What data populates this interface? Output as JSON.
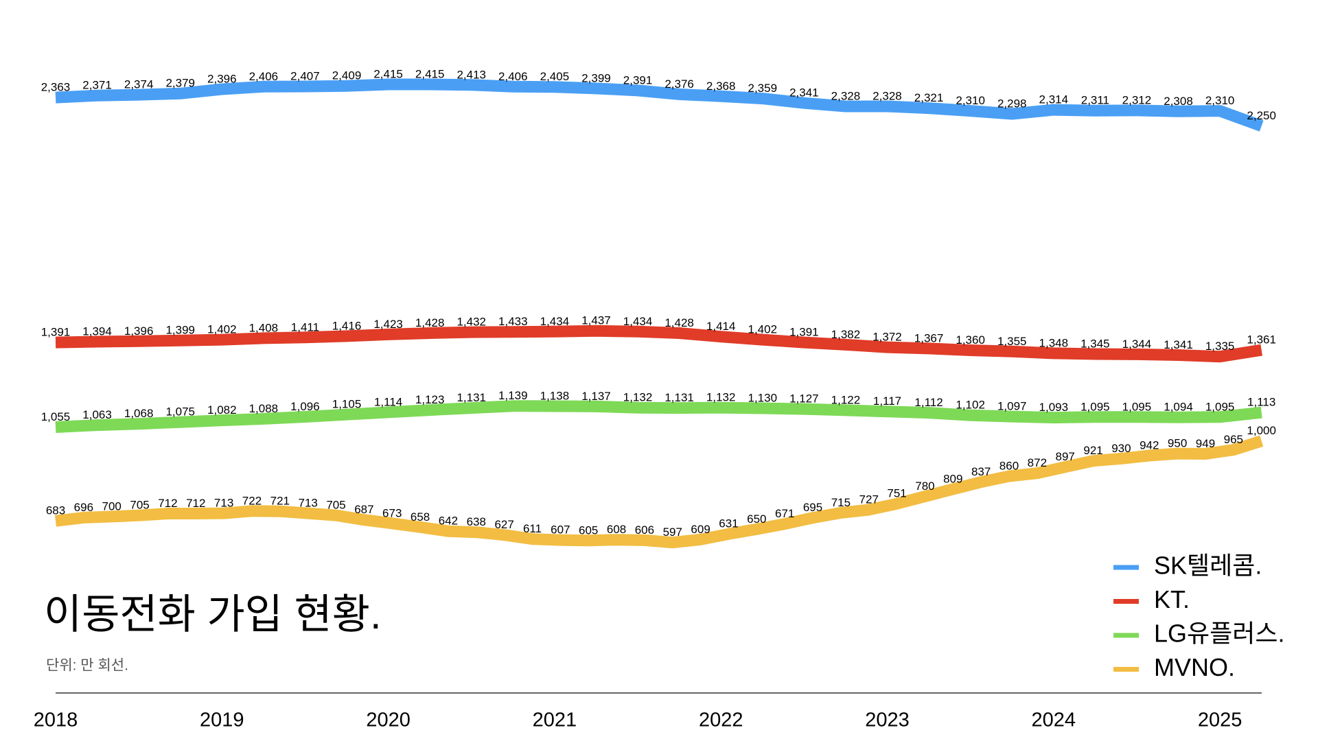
{
  "chart_data": {
    "type": "line",
    "title": "이동전화 가입 현황.",
    "subtitle": "단위: 만 회선.",
    "xlim": [
      2018,
      2025.25
    ],
    "xticks": [
      2018,
      2019,
      2020,
      2021,
      2022,
      2023,
      2024,
      2025
    ],
    "ylim": [
      0,
      2750
    ],
    "legend": "bottom-right",
    "series": [
      {
        "name": "SK텔레콤.",
        "color": "#4a9ff5",
        "values": [
          2363,
          2371,
          2374,
          2379,
          2396,
          2406,
          2407,
          2409,
          2415,
          2415,
          2413,
          2406,
          2405,
          2399,
          2391,
          2376,
          2368,
          2359,
          2341,
          2328,
          2328,
          2321,
          2310,
          2298,
          2314,
          2311,
          2312,
          2308,
          2310,
          2250
        ],
        "value_labels": [
          "2,363",
          "2,371",
          "2,374",
          "2,379",
          "2,396",
          "2,406",
          "2,407",
          "2,409",
          "2,415",
          "2,415",
          "2,413",
          "2,406",
          "2,405",
          "2,399",
          "2,391",
          "2,376",
          "2,368",
          "2,359",
          "2,341",
          "2,328",
          "2,328",
          "2,321",
          "2,310",
          "2,298",
          "2,314",
          "2,311",
          "2,312",
          "2,308",
          "2,310",
          "2,250"
        ]
      },
      {
        "name": "KT.",
        "color": "#e03c28",
        "values": [
          1391,
          1394,
          1396,
          1399,
          1402,
          1408,
          1411,
          1416,
          1423,
          1428,
          1432,
          1433,
          1434,
          1437,
          1434,
          1428,
          1414,
          1402,
          1391,
          1382,
          1372,
          1367,
          1360,
          1355,
          1348,
          1345,
          1344,
          1341,
          1335,
          1361
        ],
        "value_labels": [
          "1,391",
          "1,394",
          "1,396",
          "1,399",
          "1,402",
          "1,408",
          "1,411",
          "1,416",
          "1,423",
          "1,428",
          "1,432",
          "1,433",
          "1,434",
          "1,437",
          "1,434",
          "1,428",
          "1,414",
          "1,402",
          "1,391",
          "1,382",
          "1,372",
          "1,367",
          "1,360",
          "1,355",
          "1,348",
          "1,345",
          "1,344",
          "1,341",
          "1,335",
          "1,361"
        ]
      },
      {
        "name": "LG유플러스.",
        "color": "#7ed957",
        "values": [
          1055,
          1063,
          1068,
          1075,
          1082,
          1088,
          1096,
          1105,
          1114,
          1123,
          1131,
          1139,
          1138,
          1137,
          1132,
          1131,
          1132,
          1130,
          1127,
          1122,
          1117,
          1112,
          1102,
          1097,
          1093,
          1095,
          1095,
          1094,
          1095,
          1113
        ],
        "value_labels": [
          "1,055",
          "1,063",
          "1,068",
          "1,075",
          "1,082",
          "1,088",
          "1,096",
          "1,105",
          "1,114",
          "1,123",
          "1,131",
          "1,139",
          "1,138",
          "1,137",
          "1,132",
          "1,131",
          "1,132",
          "1,130",
          "1,127",
          "1,122",
          "1,117",
          "1,112",
          "1,102",
          "1,097",
          "1,093",
          "1,095",
          "1,095",
          "1,094",
          "1,095",
          "1,113"
        ]
      },
      {
        "name": "MVNO.",
        "color": "#f2bd42",
        "values": [
          683,
          696,
          700,
          705,
          712,
          712,
          713,
          722,
          721,
          713,
          705,
          687,
          673,
          658,
          642,
          638,
          627,
          611,
          607,
          605,
          608,
          606,
          597,
          609,
          631,
          650,
          671,
          695,
          715,
          727,
          751,
          780,
          809,
          837,
          860,
          872,
          897,
          921,
          930,
          942,
          950,
          949,
          965,
          1000
        ],
        "value_labels": [
          "683",
          "696",
          "700",
          "705",
          "712",
          "712",
          "713",
          "722",
          "721",
          "713",
          "705",
          "687",
          "673",
          "658",
          "642",
          "638",
          "627",
          "611",
          "607",
          "605",
          "608",
          "606",
          "597",
          "609",
          "631",
          "650",
          "671",
          "695",
          "715",
          "727",
          "751",
          "780",
          "809",
          "837",
          "860",
          "872",
          "897",
          "921",
          "930",
          "942",
          "950",
          "949",
          "965",
          "1,000"
        ]
      }
    ]
  }
}
